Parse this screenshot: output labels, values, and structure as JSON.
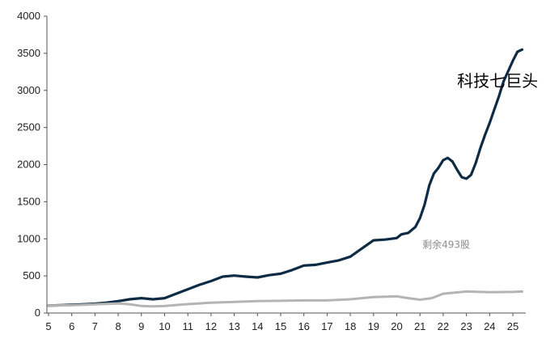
{
  "chart_data": {
    "type": "line",
    "title": "",
    "xlabel": "",
    "ylabel": "",
    "x_ticks": [
      "5",
      "6",
      "7",
      "8",
      "9",
      "10",
      "11",
      "12",
      "13",
      "14",
      "15",
      "16",
      "17",
      "18",
      "19",
      "20",
      "21",
      "22",
      "23",
      "24",
      "25"
    ],
    "y_ticks": [
      "0",
      "500",
      "1000",
      "1500",
      "2000",
      "2500",
      "3000",
      "3500",
      "4000"
    ],
    "xlim": [
      5,
      25.8
    ],
    "ylim": [
      0,
      4000
    ],
    "grid": false,
    "legend": "none",
    "annotations": [
      {
        "id": "big_tech",
        "text": "科技七巨头",
        "x": 22.6,
        "y": 3050
      },
      {
        "id": "rest",
        "text": "剩余493股",
        "x": 21.1,
        "y": 880
      }
    ],
    "series": [
      {
        "id": "big_tech",
        "color": "#0d2b45",
        "x": [
          5,
          5.5,
          6,
          6.5,
          7,
          7.5,
          8,
          8.5,
          9,
          9.5,
          10,
          10.5,
          11,
          11.5,
          12,
          12.5,
          13,
          13.5,
          14,
          14.5,
          15,
          15.5,
          16,
          16.5,
          17,
          17.5,
          18,
          18.5,
          19,
          19.5,
          20,
          20.2,
          20.5,
          20.8,
          21,
          21.2,
          21.4,
          21.6,
          21.8,
          22,
          22.2,
          22.4,
          22.6,
          22.8,
          23,
          23.2,
          23.4,
          23.6,
          23.8,
          24,
          24.2,
          24.4,
          24.6,
          24.8,
          25,
          25.2,
          25.4
        ],
        "values": [
          100,
          105,
          110,
          118,
          125,
          140,
          160,
          185,
          200,
          185,
          200,
          260,
          320,
          380,
          430,
          490,
          505,
          490,
          480,
          510,
          530,
          580,
          640,
          650,
          680,
          710,
          760,
          870,
          980,
          990,
          1010,
          1060,
          1080,
          1160,
          1280,
          1460,
          1720,
          1880,
          1960,
          2060,
          2090,
          2040,
          1930,
          1830,
          1810,
          1860,
          2020,
          2220,
          2400,
          2560,
          2740,
          2920,
          3120,
          3260,
          3400,
          3520,
          3550
        ]
      },
      {
        "id": "rest_493",
        "color": "#b4b4b4",
        "x": [
          5,
          6,
          7,
          8,
          8.5,
          9,
          9.5,
          10,
          11,
          12,
          13,
          14,
          15,
          16,
          17,
          18,
          19,
          20,
          20.5,
          21,
          21.5,
          22,
          23,
          24,
          25,
          25.4
        ],
        "values": [
          100,
          105,
          118,
          130,
          118,
          95,
          90,
          95,
          120,
          140,
          150,
          160,
          165,
          170,
          170,
          185,
          215,
          225,
          200,
          180,
          200,
          260,
          290,
          280,
          285,
          290
        ]
      }
    ]
  }
}
